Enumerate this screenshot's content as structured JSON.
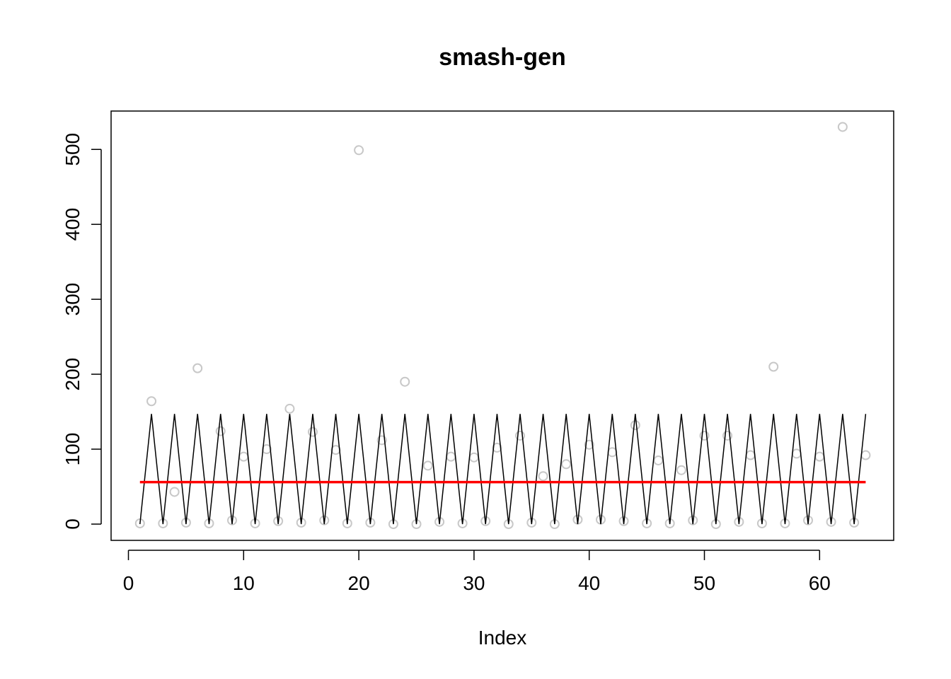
{
  "chart_data": {
    "type": "line",
    "title": "smash-gen",
    "xlabel": "Index",
    "ylabel": "",
    "xlim": [
      0,
      65
    ],
    "ylim": [
      -20,
      550
    ],
    "x_ticks": [
      0,
      10,
      20,
      30,
      40,
      50,
      60
    ],
    "y_ticks": [
      0,
      100,
      200,
      300,
      400,
      500
    ],
    "grid": false,
    "colors": {
      "points": "#c8c8c8",
      "truth_line": "#000000",
      "fit_line": "#ff0000",
      "frame": "#000000"
    },
    "series": [
      {
        "role": "observed points",
        "style": "open circles",
        "x": [
          1,
          2,
          3,
          4,
          5,
          6,
          7,
          8,
          9,
          10,
          11,
          12,
          13,
          14,
          15,
          16,
          17,
          18,
          19,
          20,
          21,
          22,
          23,
          24,
          25,
          26,
          27,
          28,
          29,
          30,
          31,
          32,
          33,
          34,
          35,
          36,
          37,
          38,
          39,
          40,
          41,
          42,
          43,
          44,
          45,
          46,
          47,
          48,
          49,
          50,
          51,
          52,
          53,
          54,
          55,
          56,
          57,
          58,
          59,
          60,
          61,
          62,
          63,
          64
        ],
        "y": [
          1,
          164,
          1,
          43,
          2,
          208,
          1,
          124,
          5,
          90,
          1,
          100,
          4,
          154,
          2,
          123,
          5,
          99,
          1,
          499,
          2,
          112,
          0,
          190,
          0,
          78,
          3,
          90,
          1,
          89,
          4,
          102,
          0,
          118,
          2,
          64,
          0,
          80,
          6,
          106,
          6,
          96,
          4,
          132,
          1,
          85,
          1,
          72,
          5,
          118,
          0,
          118,
          3,
          92,
          1,
          210,
          1,
          94,
          5,
          90,
          3,
          530,
          2,
          92
        ]
      },
      {
        "role": "true mean",
        "style": "line",
        "x": [
          1,
          2,
          3,
          4,
          5,
          6,
          7,
          8,
          9,
          10,
          11,
          12,
          13,
          14,
          15,
          16,
          17,
          18,
          19,
          20,
          21,
          22,
          23,
          24,
          25,
          26,
          27,
          28,
          29,
          30,
          31,
          32,
          33,
          34,
          35,
          36,
          37,
          38,
          39,
          40,
          41,
          42,
          43,
          44,
          45,
          46,
          47,
          48,
          49,
          50,
          51,
          52,
          53,
          54,
          55,
          56,
          57,
          58,
          59,
          60,
          61,
          62,
          63,
          64
        ],
        "y": [
          0,
          147,
          0,
          147,
          0,
          147,
          0,
          147,
          0,
          147,
          0,
          147,
          0,
          147,
          0,
          147,
          0,
          147,
          0,
          147,
          0,
          147,
          0,
          147,
          0,
          147,
          0,
          147,
          0,
          147,
          0,
          147,
          0,
          147,
          0,
          147,
          0,
          147,
          0,
          147,
          0,
          147,
          0,
          147,
          0,
          147,
          0,
          147,
          0,
          147,
          0,
          147,
          0,
          147,
          0,
          147,
          0,
          147,
          0,
          147,
          0,
          147,
          0,
          147
        ]
      },
      {
        "role": "estimate",
        "style": "line",
        "x": [
          1,
          64
        ],
        "y": [
          56,
          56
        ]
      }
    ]
  }
}
